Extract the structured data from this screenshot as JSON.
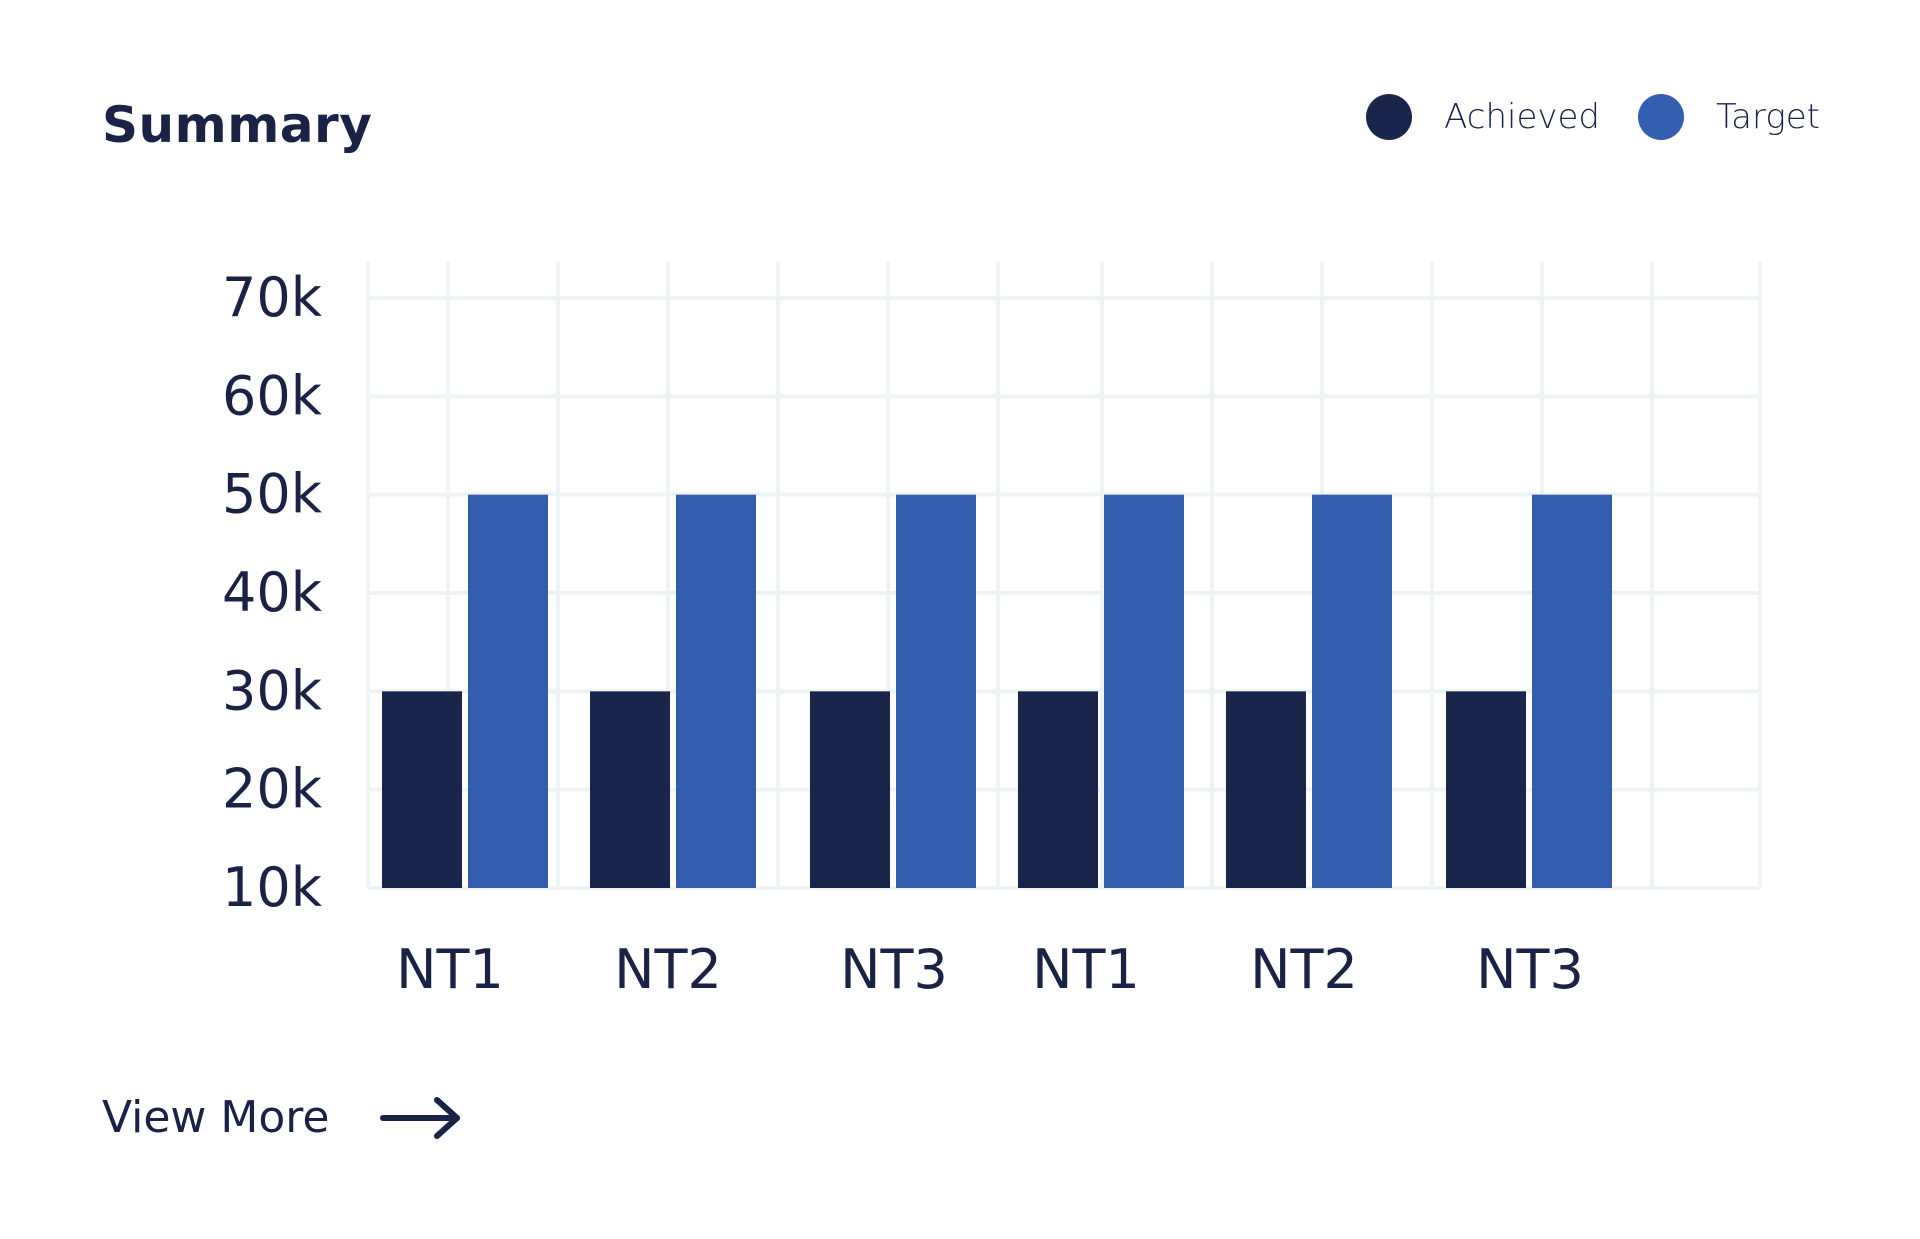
{
  "header": {
    "title": "Summary"
  },
  "legend": {
    "items": [
      {
        "label": "Achieved",
        "color": "#1a254c"
      },
      {
        "label": "Target",
        "color": "#335dae"
      }
    ]
  },
  "footer": {
    "view_more_label": "View More",
    "arrow_icon": "arrow-right-icon"
  },
  "chart_data": {
    "type": "bar",
    "categories": [
      "NT1",
      "NT2",
      "NT3",
      "NT1",
      "NT2",
      "NT3"
    ],
    "series": [
      {
        "name": "Achieved",
        "values": [
          30000,
          30000,
          30000,
          30000,
          30000,
          30000
        ],
        "color": "#1a254c"
      },
      {
        "name": "Target",
        "values": [
          50000,
          50000,
          50000,
          50000,
          50000,
          50000
        ],
        "color": "#335dae"
      }
    ],
    "yticks": [
      {
        "value": 10000,
        "label": "10k"
      },
      {
        "value": 20000,
        "label": "20k"
      },
      {
        "value": 30000,
        "label": "30k"
      },
      {
        "value": 40000,
        "label": "40k"
      },
      {
        "value": 50000,
        "label": "50k"
      },
      {
        "value": 60000,
        "label": "60k"
      },
      {
        "value": 70000,
        "label": "70k"
      }
    ],
    "ylim": [
      10000,
      70000
    ],
    "title": "",
    "xlabel": "",
    "ylabel": "",
    "grid": true,
    "legend_position": "top-right"
  }
}
